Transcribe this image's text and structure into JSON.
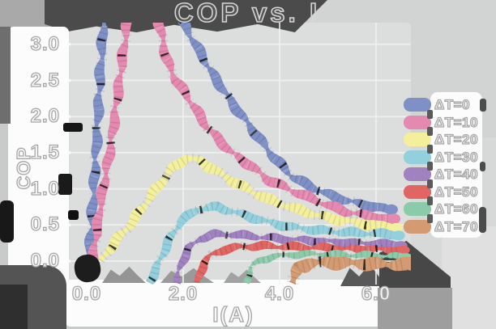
{
  "title": "COP vs. I",
  "colors": {
    "canvas": "#c9caca",
    "plot_bg": "#dcdedd",
    "title_block": "#4b4b4b",
    "label_panel": "#fcfcfc",
    "gridline": "#f0f1f0",
    "shadow_dark": "#474747",
    "origin_blob": "#1d1d1d"
  },
  "chart_data": {
    "type": "line",
    "title": "COP vs. I",
    "xlabel": "I(A)",
    "ylabel": "COP",
    "xlim": [
      -0.32,
      6.72
    ],
    "ylim": [
      -0.3,
      3.27
    ],
    "x_ticks": [
      0.0,
      2.0,
      4.0,
      6.0
    ],
    "y_ticks": [
      0.0,
      0.5,
      1.0,
      1.5,
      2.0,
      2.5,
      3.0
    ],
    "grid": true,
    "legend_position": "right",
    "series": [
      {
        "name": "ΔT=0",
        "color": "#7e90c6",
        "stroke_px": 13,
        "points": [
          [
            0.05,
            0.0
          ],
          [
            0.12,
            0.7
          ],
          [
            0.2,
            1.6
          ],
          [
            0.28,
            2.6
          ],
          [
            0.38,
            3.6
          ],
          [
            1.7,
            3.7
          ],
          [
            2.0,
            3.3
          ],
          [
            2.3,
            2.95
          ],
          [
            2.6,
            2.6
          ],
          [
            3.0,
            2.2
          ],
          [
            3.4,
            1.85
          ],
          [
            3.9,
            1.42
          ],
          [
            4.3,
            1.15
          ],
          [
            4.9,
            0.95
          ],
          [
            5.4,
            0.83
          ],
          [
            6.25,
            0.71
          ]
        ]
      },
      {
        "name": "ΔT=10",
        "color": "#e589b1",
        "stroke_px": 13,
        "points": [
          [
            0.12,
            0.0
          ],
          [
            0.3,
            0.85
          ],
          [
            0.5,
            1.6
          ],
          [
            0.7,
            2.6
          ],
          [
            0.9,
            3.6
          ],
          [
            1.35,
            3.6
          ],
          [
            1.5,
            3.3
          ],
          [
            1.65,
            2.8
          ],
          [
            1.85,
            2.5
          ],
          [
            2.07,
            2.3
          ],
          [
            2.5,
            1.85
          ],
          [
            3.0,
            1.5
          ],
          [
            3.4,
            1.32
          ],
          [
            3.75,
            1.13
          ],
          [
            4.25,
            0.98
          ],
          [
            4.9,
            0.8
          ],
          [
            5.4,
            0.68
          ],
          [
            6.3,
            0.57
          ]
        ]
      },
      {
        "name": "ΔT=20",
        "color": "#f3ef9b",
        "stroke_px": 13,
        "points": [
          [
            0.3,
            0.0
          ],
          [
            0.6,
            0.28
          ],
          [
            0.9,
            0.5
          ],
          [
            1.2,
            0.78
          ],
          [
            1.5,
            1.05
          ],
          [
            1.8,
            1.3
          ],
          [
            2.05,
            1.42
          ],
          [
            2.35,
            1.39
          ],
          [
            2.6,
            1.28
          ],
          [
            3.0,
            1.12
          ],
          [
            3.4,
            0.97
          ],
          [
            3.75,
            0.86
          ],
          [
            4.25,
            0.74
          ],
          [
            4.75,
            0.64
          ],
          [
            5.25,
            0.57
          ],
          [
            5.8,
            0.51
          ],
          [
            6.35,
            0.47
          ]
        ]
      },
      {
        "name": "ΔT=30",
        "color": "#93d0dd",
        "stroke_px": 12,
        "points": [
          [
            1.3,
            -0.3
          ],
          [
            1.5,
            -0.02
          ],
          [
            1.7,
            0.28
          ],
          [
            1.95,
            0.55
          ],
          [
            2.3,
            0.72
          ],
          [
            2.7,
            0.75
          ],
          [
            3.0,
            0.69
          ],
          [
            3.4,
            0.61
          ],
          [
            3.75,
            0.54
          ],
          [
            4.25,
            0.47
          ],
          [
            4.75,
            0.43
          ],
          [
            5.3,
            0.4
          ],
          [
            6.4,
            0.37
          ]
        ]
      },
      {
        "name": "ΔT=40",
        "color": "#a182c1",
        "stroke_px": 11,
        "points": [
          [
            1.85,
            -0.3
          ],
          [
            1.97,
            -0.02
          ],
          [
            2.12,
            0.18
          ],
          [
            2.35,
            0.31
          ],
          [
            2.65,
            0.37
          ],
          [
            3.05,
            0.37
          ],
          [
            3.5,
            0.34
          ],
          [
            4.0,
            0.31
          ],
          [
            4.5,
            0.29
          ],
          [
            5.0,
            0.27
          ],
          [
            5.6,
            0.25
          ],
          [
            6.45,
            0.23
          ]
        ]
      },
      {
        "name": "ΔT=50",
        "color": "#e16562",
        "stroke_px": 11,
        "points": [
          [
            2.3,
            -0.3
          ],
          [
            2.42,
            -0.03
          ],
          [
            2.58,
            0.08
          ],
          [
            2.85,
            0.16
          ],
          [
            3.2,
            0.2
          ],
          [
            3.7,
            0.21
          ],
          [
            4.2,
            0.2
          ],
          [
            4.8,
            0.19
          ],
          [
            5.4,
            0.17
          ],
          [
            6.5,
            0.15
          ]
        ]
      },
      {
        "name": "ΔT=60",
        "color": "#8ccbaa",
        "stroke_px": 9,
        "points": [
          [
            3.3,
            -0.3
          ],
          [
            3.42,
            -0.07
          ],
          [
            3.6,
            0.01
          ],
          [
            3.85,
            0.06
          ],
          [
            4.25,
            0.09
          ],
          [
            4.75,
            0.1
          ],
          [
            5.3,
            0.09
          ],
          [
            5.9,
            0.08
          ],
          [
            6.55,
            0.06
          ]
        ]
      },
      {
        "name": "ΔT=70",
        "color": "#d49b72",
        "stroke_px": 17,
        "points": [
          [
            4.25,
            -0.3
          ],
          [
            4.4,
            -0.1
          ],
          [
            4.6,
            -0.03
          ],
          [
            5.0,
            -0.02
          ],
          [
            5.5,
            -0.03
          ],
          [
            6.0,
            -0.04
          ],
          [
            6.65,
            -0.05
          ]
        ]
      }
    ]
  }
}
